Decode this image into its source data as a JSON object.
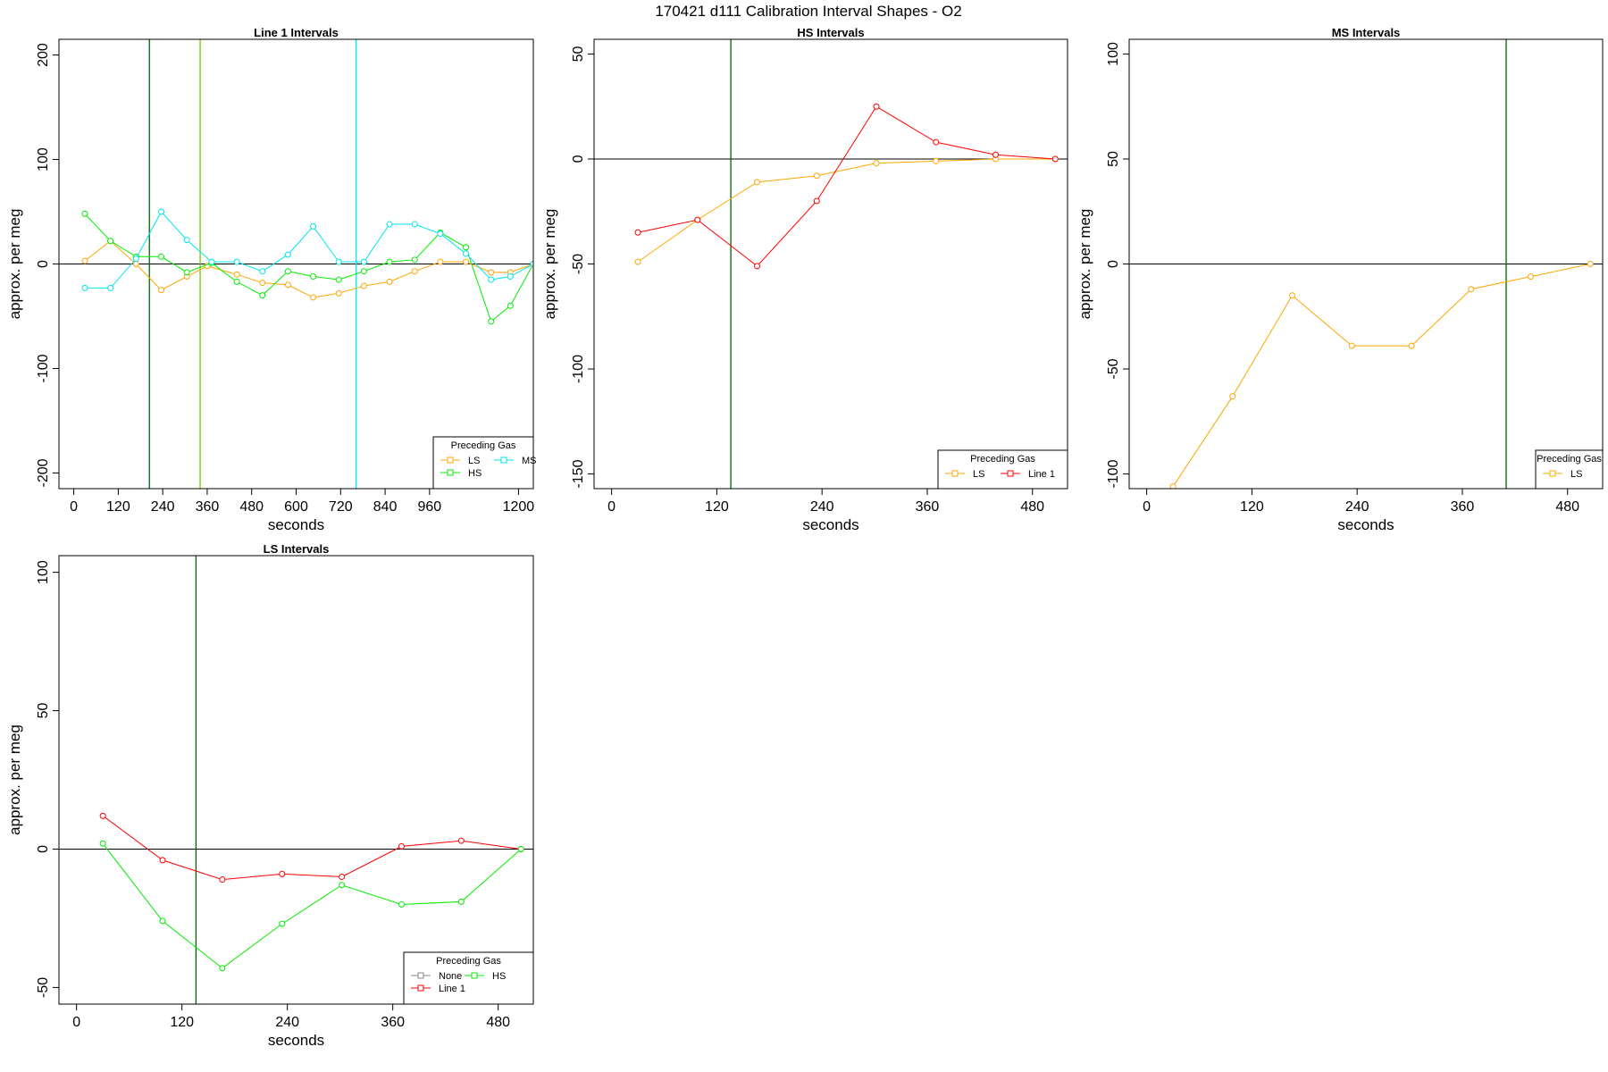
{
  "figure_title": "170421   d111   Calibration Interval Shapes - O2",
  "colors": {
    "LS": "#FFA500",
    "HS": "#00EE00",
    "MS": "#00E5EE",
    "Line 1": "#FF0000",
    "None": "#888888",
    "vline_dark": "#006400",
    "vline_green": "#66CD00",
    "vline_cyan": "#00E5EE",
    "zero_line": "#000000"
  },
  "chart_data": [
    {
      "type": "line",
      "title": "Line 1 Intervals",
      "xlabel": "seconds",
      "ylabel": "approx. per meg",
      "xlim": [
        -40,
        1240
      ],
      "ylim": [
        -215,
        215
      ],
      "xticks": [
        0,
        120,
        240,
        360,
        480,
        600,
        720,
        840,
        960,
        1200
      ],
      "xtick_labels": [
        "0",
        "120",
        "240",
        "360",
        "480",
        "600",
        "720",
        "840",
        "960",
        "1200"
      ],
      "yticks": [
        200,
        100,
        0,
        -100,
        -200
      ],
      "ytick_labels": [
        "200",
        "100",
        "0",
        "-100",
        "-200"
      ],
      "hline": 0,
      "vlines": [
        {
          "x": 204,
          "color": "vline_dark"
        },
        {
          "x": 341,
          "color": "vline_green"
        },
        {
          "x": 762,
          "color": "vline_cyan"
        }
      ],
      "series": [
        {
          "name": "LS",
          "color": "LS",
          "x": [
            30,
            99,
            168,
            236,
            305,
            360,
            440,
            509,
            578,
            646,
            715,
            783,
            852,
            920,
            989,
            1058,
            1126,
            1178,
            1240
          ],
          "y": [
            3,
            22,
            0,
            -25,
            -12,
            -2,
            -10,
            -18,
            -20,
            -32,
            -28,
            -21,
            -17,
            -7,
            2,
            2,
            -8,
            -8,
            0
          ]
        },
        {
          "name": "HS",
          "color": "HS",
          "x": [
            30,
            99,
            168,
            236,
            305,
            372,
            440,
            509,
            578,
            646,
            715,
            783,
            852,
            920,
            989,
            1058,
            1126,
            1178,
            1240
          ],
          "y": [
            48,
            22,
            7,
            7,
            -8,
            1,
            -17,
            -30,
            -7,
            -12,
            -15,
            -7,
            2,
            4,
            30,
            16,
            -55,
            -40,
            0
          ]
        },
        {
          "name": "MS",
          "color": "MS",
          "x": [
            30,
            99,
            168,
            236,
            305,
            372,
            440,
            509,
            578,
            646,
            715,
            783,
            852,
            920,
            989,
            1058,
            1126,
            1178,
            1240
          ],
          "y": [
            -23,
            -23,
            5,
            50,
            23,
            2,
            2,
            -7,
            9,
            36,
            2,
            2,
            38,
            38,
            29,
            10,
            -15,
            -12,
            0
          ]
        }
      ],
      "legend": {
        "title": "Preceding Gas",
        "placement": "bottom-right",
        "rows": [
          [
            "LS",
            "MS"
          ],
          [
            "HS"
          ]
        ]
      }
    },
    {
      "type": "line",
      "title": "HS Intervals",
      "xlabel": "seconds",
      "ylabel": "approx. per meg",
      "xlim": [
        -20,
        520
      ],
      "ylim": [
        -157,
        57
      ],
      "xticks": [
        0,
        120,
        240,
        360,
        480
      ],
      "xtick_labels": [
        "0",
        "120",
        "240",
        "360",
        "480"
      ],
      "yticks": [
        50,
        0,
        -50,
        -100,
        -150
      ],
      "ytick_labels": [
        "50",
        "0",
        "-50",
        "-100",
        "-150"
      ],
      "hline": 0,
      "vlines": [
        {
          "x": 136,
          "color": "vline_dark"
        }
      ],
      "series": [
        {
          "name": "LS",
          "color": "LS",
          "x": [
            30,
            98,
            166,
            234,
            302,
            370,
            438,
            506
          ],
          "y": [
            -49,
            -29,
            -11,
            -8,
            -2,
            -1,
            0,
            0
          ]
        },
        {
          "name": "Line 1",
          "color": "Line 1",
          "x": [
            30,
            98,
            166,
            234,
            302,
            370,
            438,
            506
          ],
          "y": [
            -35,
            -29,
            -51,
            -20,
            25,
            8,
            2,
            0
          ]
        }
      ],
      "legend": {
        "title": "Preceding Gas",
        "placement": "bottom-right",
        "rows": [
          [
            "LS",
            "Line 1"
          ]
        ]
      }
    },
    {
      "type": "line",
      "title": "MS Intervals",
      "xlabel": "seconds",
      "ylabel": "approx. per meg",
      "xlim": [
        -20,
        520
      ],
      "ylim": [
        -107,
        107
      ],
      "xticks": [
        0,
        120,
        240,
        360,
        480
      ],
      "xtick_labels": [
        "0",
        "120",
        "240",
        "360",
        "480"
      ],
      "yticks": [
        100,
        50,
        0,
        -50,
        -100
      ],
      "ytick_labels": [
        "100",
        "50",
        "0",
        "-50",
        "-100"
      ],
      "hline": 0,
      "vlines": [
        {
          "x": 410,
          "color": "vline_dark"
        }
      ],
      "series": [
        {
          "name": "LS",
          "color": "LS",
          "x": [
            30,
            98,
            166,
            234,
            302,
            370,
            438,
            506
          ],
          "y": [
            -106,
            -63,
            -15,
            -39,
            -39,
            -12,
            -6,
            0
          ]
        }
      ],
      "legend": {
        "title": "Preceding Gas",
        "placement": "bottom-right",
        "rows": [
          [
            "LS"
          ]
        ]
      }
    },
    {
      "type": "line",
      "title": "LS Intervals",
      "xlabel": "seconds",
      "ylabel": "approx. per meg",
      "xlim": [
        -20,
        520
      ],
      "ylim": [
        -56,
        106
      ],
      "xticks": [
        0,
        120,
        240,
        360,
        480
      ],
      "xtick_labels": [
        "0",
        "120",
        "240",
        "360",
        "480"
      ],
      "yticks": [
        100,
        50,
        0,
        -50
      ],
      "ytick_labels": [
        "100",
        "50",
        "0",
        "-50"
      ],
      "hline": 0,
      "vlines": [
        {
          "x": 136,
          "color": "vline_dark"
        }
      ],
      "series": [
        {
          "name": "Line 1",
          "color": "Line 1",
          "x": [
            30,
            98,
            166,
            234,
            302,
            370,
            438,
            506
          ],
          "y": [
            12,
            -4,
            -11,
            -9,
            -10,
            1,
            3,
            0
          ]
        },
        {
          "name": "HS",
          "color": "HS",
          "x": [
            30,
            98,
            166,
            234,
            302,
            370,
            438,
            506
          ],
          "y": [
            2,
            -26,
            -43,
            -27,
            -13,
            -20,
            -19,
            0
          ]
        }
      ],
      "legend": {
        "title": "Preceding Gas",
        "placement": "bottom-right",
        "rows": [
          [
            "None",
            "HS"
          ],
          [
            "Line 1"
          ]
        ]
      }
    }
  ]
}
